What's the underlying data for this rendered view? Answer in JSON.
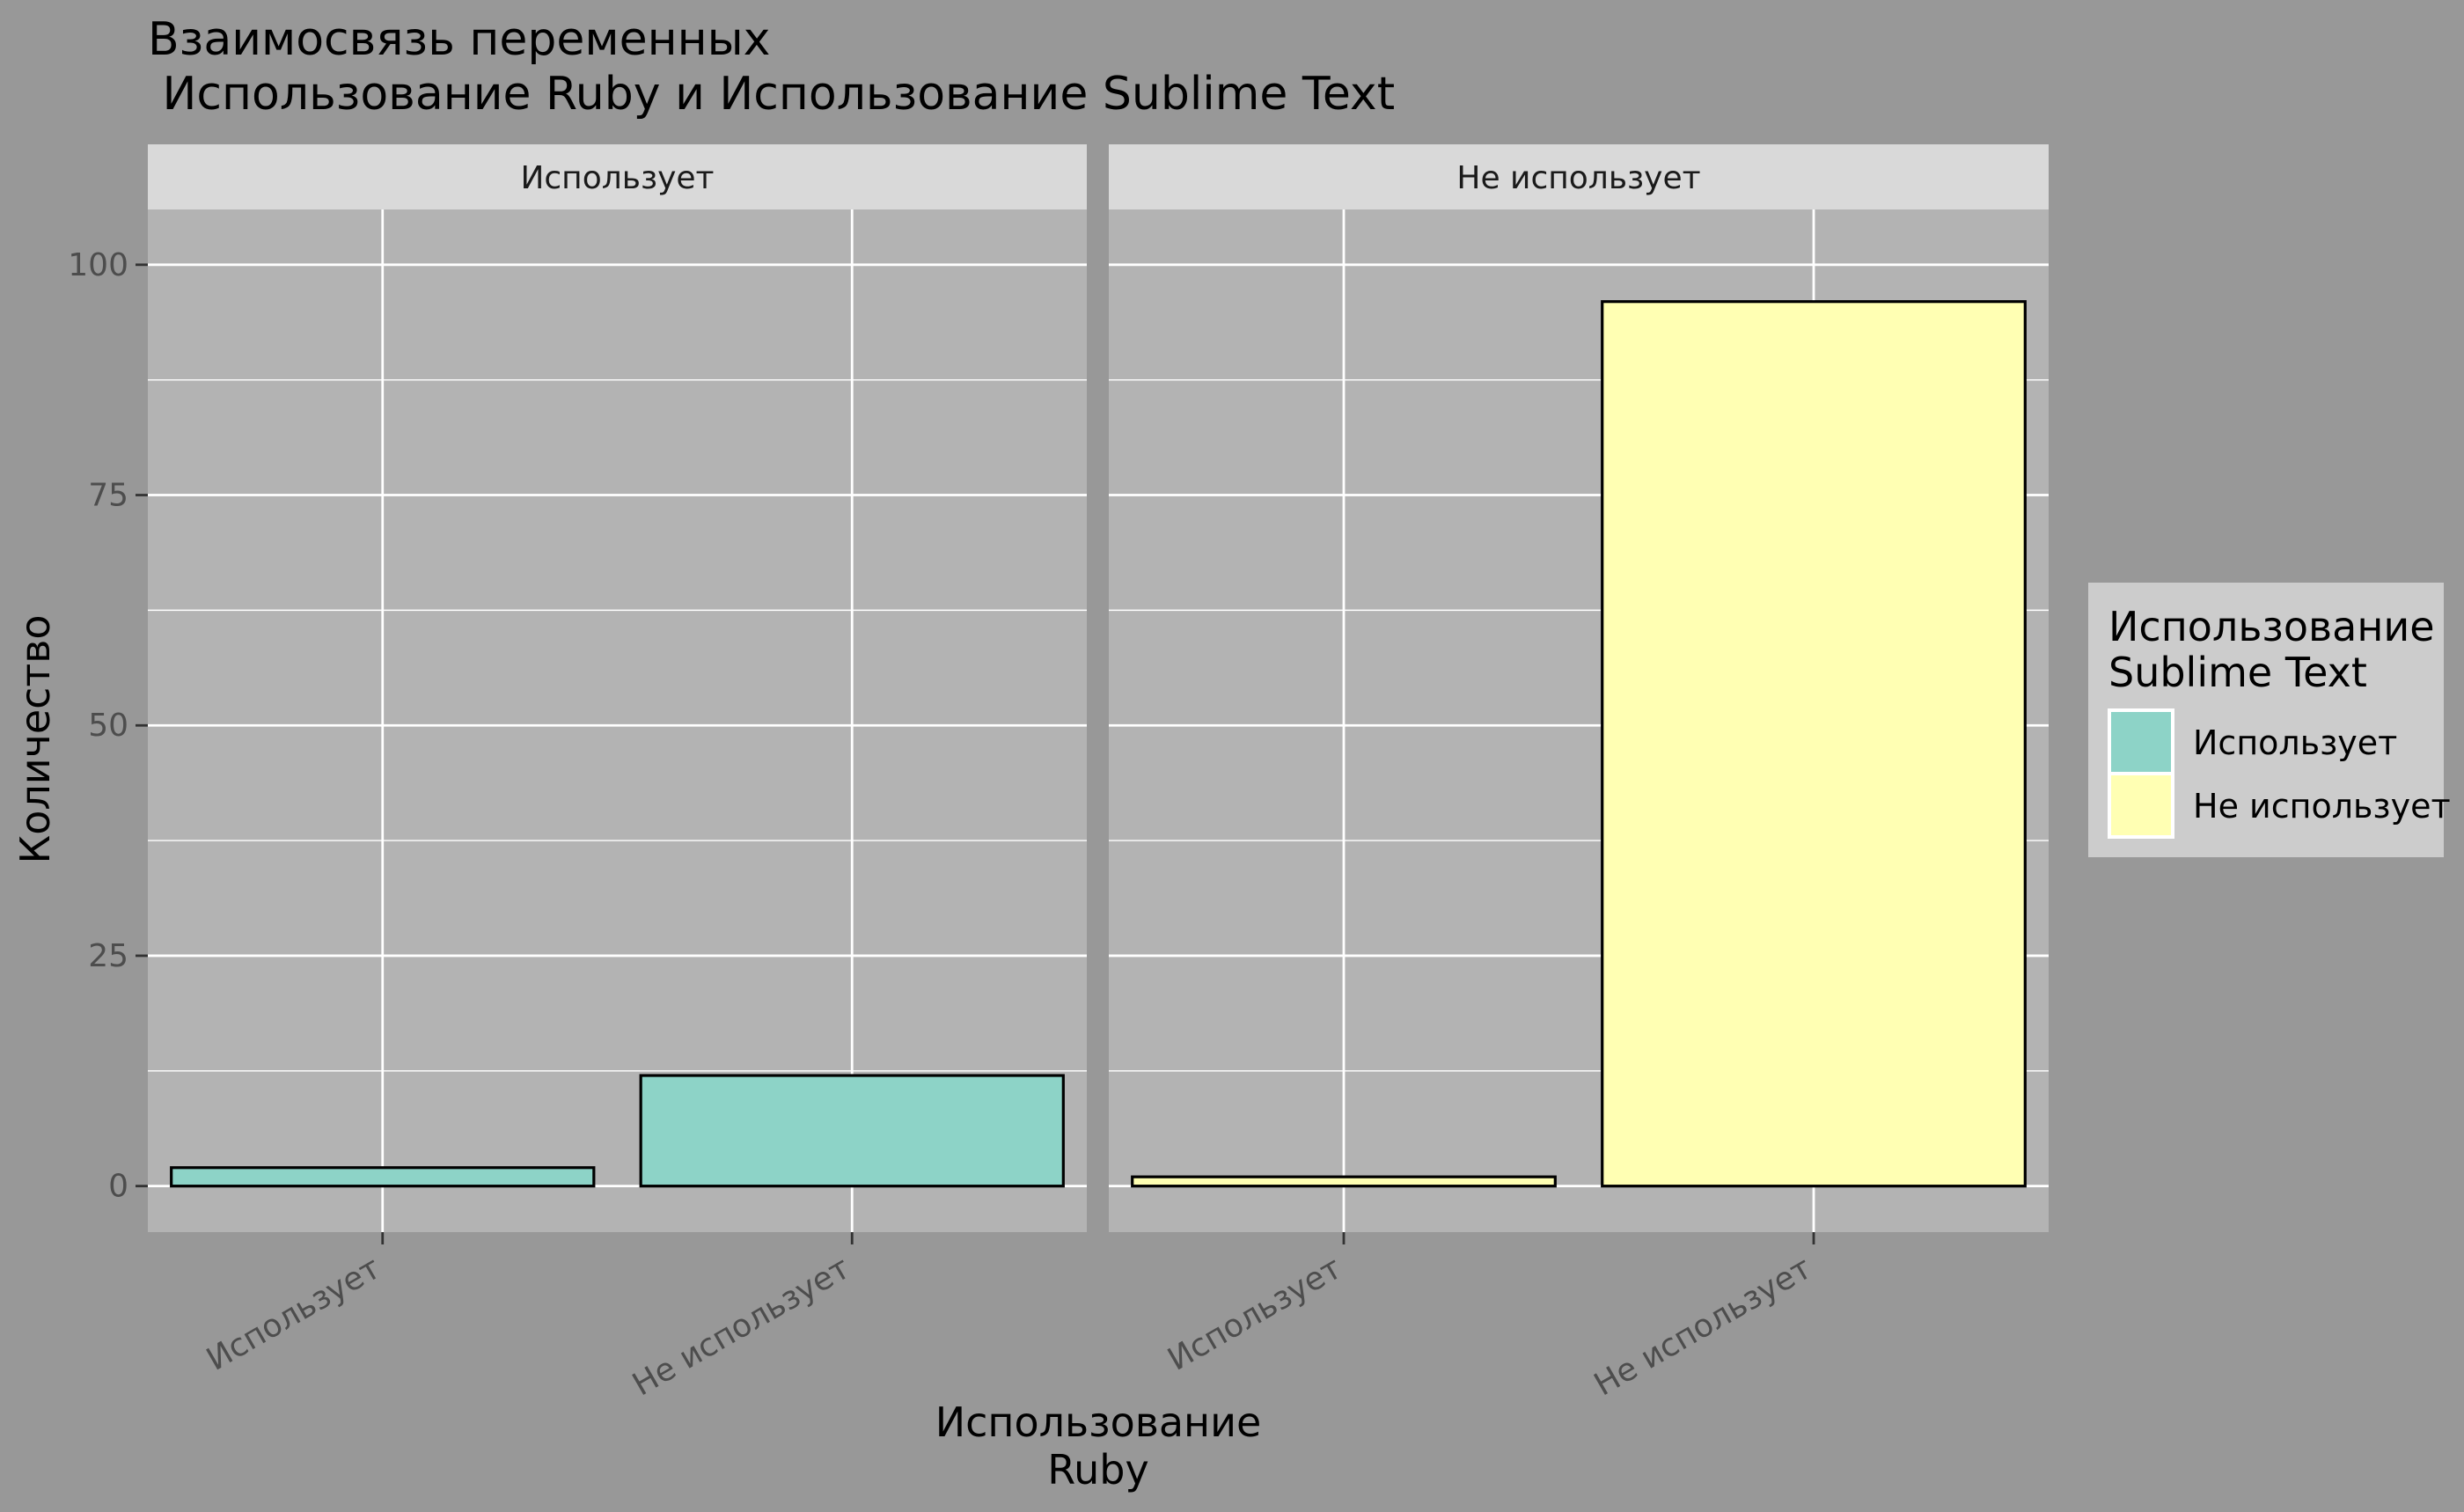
{
  "chart_data": {
    "type": "bar",
    "title_line1": "Взаимосвязь переменных",
    "title_line2": " Использование Ruby и Использование Sublime Text",
    "facets": [
      "Использует",
      "Не использует"
    ],
    "categories": [
      "Использует",
      "Не использует"
    ],
    "xlabel_line1": "Использование",
    "xlabel_line2": "Ruby",
    "ylabel": "Количество",
    "ylim": [
      -5,
      106
    ],
    "yticks": [
      0,
      25,
      50,
      75,
      100
    ],
    "values": [
      {
        "facet": "Использует",
        "category": "Использует",
        "value": 2,
        "fill": "Использует"
      },
      {
        "facet": "Использует",
        "category": "Не использует",
        "value": 12,
        "fill": "Использует"
      },
      {
        "facet": "Не использует",
        "category": "Использует",
        "value": 1,
        "fill": "Не использует"
      },
      {
        "facet": "Не использует",
        "category": "Не использует",
        "value": 96,
        "fill": "Не использует"
      }
    ],
    "legend": {
      "title_line1": "Использование",
      "title_line2": "Sublime Text",
      "entries": [
        {
          "label": "Использует",
          "color": "#8dd3c7"
        },
        {
          "label": "Не использует",
          "color": "#ffffb3"
        }
      ],
      "placement": "right"
    },
    "grid": true,
    "colors": {
      "background": "#989898",
      "panel": "#b3b3b3",
      "strip": "#d9d9d9",
      "legend_bg": "#cccccc",
      "gridline": "#ffffff",
      "bar_outline": "#000000"
    }
  }
}
